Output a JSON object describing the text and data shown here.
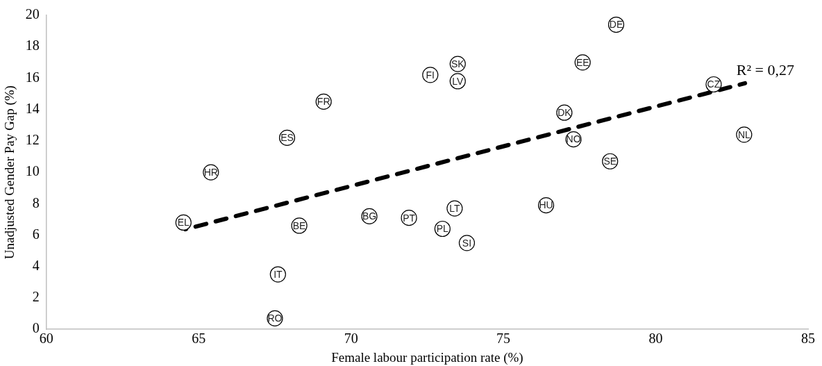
{
  "chart_data": {
    "type": "scatter",
    "xlabel": "Female labour participation rate (%)",
    "ylabel": "Unadjusted Gender Pay Gap (%)",
    "xlim": [
      60,
      85
    ],
    "xticks": [
      60,
      65,
      70,
      75,
      80,
      85
    ],
    "ylim": [
      0,
      20
    ],
    "yticks": [
      0,
      2,
      4,
      6,
      8,
      10,
      12,
      14,
      16,
      18,
      20
    ],
    "grid": false,
    "legend": false,
    "marker": "circle",
    "series": [
      {
        "color": "#000000",
        "x": [
          64.5,
          65.4,
          67.9,
          69.1,
          68.3,
          67.6,
          67.5,
          70.6,
          71.9,
          72.6,
          73.5,
          73.5,
          73.4,
          73.0,
          73.8,
          76.4,
          77.0,
          77.3,
          77.6,
          78.7,
          78.5,
          81.9,
          82.9
        ],
        "values": [
          6.8,
          10.0,
          12.2,
          14.5,
          6.6,
          3.5,
          0.7,
          7.2,
          7.1,
          16.2,
          16.9,
          15.8,
          7.7,
          6.4,
          5.5,
          7.9,
          13.8,
          12.1,
          17.0,
          19.4,
          10.7,
          15.6,
          12.4
        ],
        "value_labels": [
          "EL",
          "HR",
          "ES",
          "FR",
          "BE",
          "IT",
          "RO",
          "BG",
          "PT",
          "FI",
          "SK",
          "LV",
          "LT",
          "PL",
          "SI",
          "HU",
          "DK",
          "NO",
          "EE",
          "DE",
          "SE",
          "CZ",
          "NL"
        ]
      },
      {
        "type": "line",
        "color": "#000000",
        "line_style": "dashed",
        "marker": "none",
        "x": [
          64.56,
          82.93
        ],
        "values": [
          6.37,
          15.67
        ]
      }
    ],
    "annotations": [
      "R² = 0,27"
    ]
  }
}
